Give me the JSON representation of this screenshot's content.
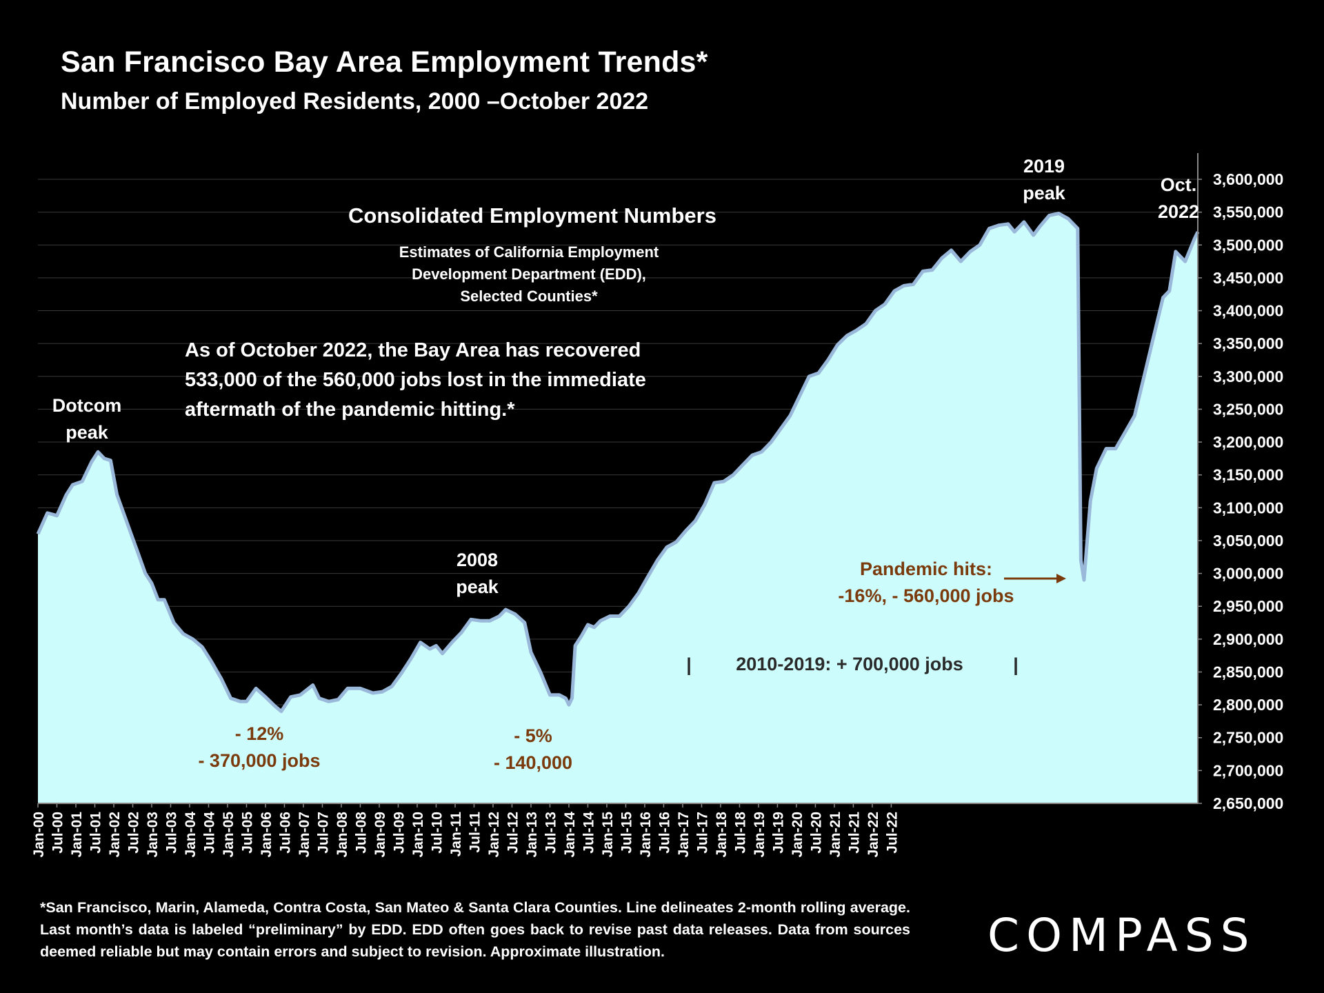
{
  "title": "San Francisco Bay Area Employment Trends*",
  "subtitle": "Number of Employed Residents, 2000 –October 2022",
  "chart_data": {
    "type": "area",
    "title": "San Francisco Bay Area Employment Trends*",
    "subtitle": "Number of Employed Residents, 2000 –October 2022",
    "ylim": [
      2650000,
      3600000
    ],
    "y_ticks": [
      2650000,
      2700000,
      2750000,
      2800000,
      2850000,
      2900000,
      2950000,
      3000000,
      3050000,
      3100000,
      3150000,
      3200000,
      3250000,
      3300000,
      3350000,
      3400000,
      3450000,
      3500000,
      3550000,
      3600000
    ],
    "y_tick_labels": [
      "2,650,000",
      "2,700,000",
      "2,750,000",
      "2,800,000",
      "2,850,000",
      "2,900,000",
      "2,950,000",
      "3,000,000",
      "3,050,000",
      "3,100,000",
      "3,150,000",
      "3,200,000",
      "3,250,000",
      "3,300,000",
      "3,350,000",
      "3,400,000",
      "3,450,000",
      "3,500,000",
      "3,550,000",
      "3,600,000"
    ],
    "x_tick_labels": [
      "Jan-00",
      "Jul-00",
      "Jan-01",
      "Jul-01",
      "Jan-02",
      "Jul-02",
      "Jan-03",
      "Jul-03",
      "Jan-04",
      "Jul-04",
      "Jan-05",
      "Jul-05",
      "Jan-06",
      "Jul-06",
      "Jan-07",
      "Jul-07",
      "Jan-08",
      "Jul-08",
      "Jan-09",
      "Jul-09",
      "Jan-10",
      "Jul-10",
      "Jan-11",
      "Jul-11",
      "Jan-12",
      "Jul-12",
      "Jan-13",
      "Jul-13",
      "Jan-14",
      "Jul-14",
      "Jan-15",
      "Jul-15",
      "Jan-16",
      "Jul-16",
      "Jan-17",
      "Jul-17",
      "Jan-18",
      "Jul-18",
      "Jan-19",
      "Jul-19",
      "Jan-20",
      "Jul-20",
      "Jan-21",
      "Jul-21",
      "Jan-22",
      "Jul-22"
    ],
    "x_range_months": [
      0,
      274
    ],
    "series": [
      {
        "name": "Employed Residents (2-month rolling average)",
        "points": [
          [
            0,
            3060000
          ],
          [
            3,
            3092000
          ],
          [
            6,
            3088000
          ],
          [
            9,
            3120000
          ],
          [
            11,
            3135000
          ],
          [
            14,
            3140000
          ],
          [
            17,
            3170000
          ],
          [
            19,
            3185000
          ],
          [
            21,
            3175000
          ],
          [
            23,
            3172000
          ],
          [
            25,
            3120000
          ],
          [
            28,
            3080000
          ],
          [
            31,
            3040000
          ],
          [
            34,
            3000000
          ],
          [
            36,
            2985000
          ],
          [
            38,
            2960000
          ],
          [
            40,
            2960000
          ],
          [
            43,
            2925000
          ],
          [
            46,
            2908000
          ],
          [
            49,
            2900000
          ],
          [
            52,
            2888000
          ],
          [
            55,
            2865000
          ],
          [
            58,
            2840000
          ],
          [
            61,
            2810000
          ],
          [
            64,
            2805000
          ],
          [
            66,
            2805000
          ],
          [
            69,
            2825000
          ],
          [
            72,
            2812000
          ],
          [
            75,
            2798000
          ],
          [
            77,
            2790000
          ],
          [
            80,
            2812000
          ],
          [
            83,
            2815000
          ],
          [
            87,
            2830000
          ],
          [
            89,
            2810000
          ],
          [
            92,
            2805000
          ],
          [
            95,
            2808000
          ],
          [
            98,
            2825000
          ],
          [
            102,
            2825000
          ],
          [
            106,
            2818000
          ],
          [
            109,
            2820000
          ],
          [
            112,
            2828000
          ],
          [
            115,
            2848000
          ],
          [
            118,
            2870000
          ],
          [
            121,
            2895000
          ],
          [
            124,
            2885000
          ],
          [
            126,
            2890000
          ],
          [
            128,
            2878000
          ],
          [
            131,
            2895000
          ],
          [
            134,
            2910000
          ],
          [
            137,
            2930000
          ],
          [
            140,
            2928000
          ],
          [
            143,
            2928000
          ],
          [
            146,
            2935000
          ],
          [
            148,
            2945000
          ],
          [
            151,
            2938000
          ],
          [
            154,
            2925000
          ],
          [
            156,
            2880000
          ],
          [
            159,
            2850000
          ],
          [
            162,
            2815000
          ],
          [
            165,
            2815000
          ],
          [
            167,
            2810000
          ],
          [
            168,
            2800000
          ],
          [
            169,
            2810000
          ],
          [
            170,
            2890000
          ],
          [
            172,
            2905000
          ],
          [
            174,
            2922000
          ],
          [
            176,
            2918000
          ],
          [
            178,
            2928000
          ],
          [
            181,
            2935000
          ],
          [
            184,
            2935000
          ],
          [
            187,
            2950000
          ],
          [
            190,
            2970000
          ],
          [
            193,
            2995000
          ],
          [
            196,
            3020000
          ],
          [
            199,
            3040000
          ],
          [
            202,
            3048000
          ],
          [
            205,
            3065000
          ],
          [
            208,
            3080000
          ],
          [
            211,
            3105000
          ],
          [
            214,
            3138000
          ],
          [
            217,
            3140000
          ],
          [
            220,
            3150000
          ],
          [
            223,
            3165000
          ],
          [
            226,
            3180000
          ],
          [
            229,
            3185000
          ],
          [
            232,
            3200000
          ],
          [
            235,
            3220000
          ],
          [
            238,
            3240000
          ],
          [
            241,
            3270000
          ],
          [
            244,
            3300000
          ],
          [
            247,
            3305000
          ],
          [
            250,
            3325000
          ],
          [
            253,
            3348000
          ],
          [
            256,
            3362000
          ],
          [
            259,
            3370000
          ],
          [
            262,
            3380000
          ],
          [
            265,
            3400000
          ],
          [
            268,
            3410000
          ],
          [
            271,
            3430000
          ],
          [
            274,
            3438000
          ],
          [
            277,
            3440000
          ],
          [
            280,
            3460000
          ],
          [
            283,
            3462000
          ],
          [
            286,
            3480000
          ],
          [
            289,
            3492000
          ],
          [
            292,
            3475000
          ],
          [
            295,
            3490000
          ],
          [
            298,
            3500000
          ],
          [
            301,
            3525000
          ],
          [
            304,
            3530000
          ],
          [
            307,
            3532000
          ],
          [
            309,
            3520000
          ],
          [
            312,
            3535000
          ],
          [
            315,
            3515000
          ],
          [
            317,
            3528000
          ],
          [
            320,
            3545000
          ],
          [
            323,
            3548000
          ],
          [
            326,
            3540000
          ],
          [
            329,
            3525000
          ],
          [
            330,
            3020000
          ],
          [
            331,
            2990000
          ],
          [
            333,
            3110000
          ],
          [
            335,
            3160000
          ],
          [
            338,
            3190000
          ],
          [
            341,
            3190000
          ],
          [
            344,
            3215000
          ],
          [
            347,
            3240000
          ],
          [
            350,
            3300000
          ],
          [
            353,
            3360000
          ],
          [
            356,
            3420000
          ],
          [
            358,
            3430000
          ],
          [
            360,
            3490000
          ],
          [
            363,
            3475000
          ],
          [
            366,
            3510000
          ],
          [
            367,
            3520000
          ]
        ]
      }
    ],
    "annotations": {
      "dotcom": "Dotcom\npeak",
      "peak2008": "2008\npeak",
      "peak2019": "2019\npeak",
      "oct2022": "Oct.\n2022",
      "drop1": "- 12%\n- 370,000 jobs",
      "drop2": "- 5%\n- 140,000",
      "pandemic": "Pandemic hits:\n-16%, - 560,000 jobs",
      "range_text": "2010-2019: + 700,000 jobs",
      "range_bar_left": "|",
      "range_bar_right": "|",
      "box_title": "Consolidated Employment Numbers",
      "box_sub": "Estimates of California Employment\nDevelopment Department (EDD),\nSelected Counties*",
      "recovery": "As of October 2022, the Bay Area has recovered\n533,000 of the 560,000 jobs lost in the immediate\naftermath of the pandemic hitting.*"
    },
    "colors": {
      "fill": "#ccfcfc",
      "line": "#9ab8da",
      "annotation_brown": "#7b3a0c",
      "grid": "#3a3a3a"
    }
  },
  "footnote": "*San Francisco, Marin, Alameda, Contra Costa, San Mateo & Santa Clara Counties. Line delineates 2-month rolling average. Last month’s data is labeled “preliminary” by EDD. EDD often goes back to revise past data releases. Data from sources deemed reliable but may contain errors and subject to revision. Approximate illustration.",
  "logo": "COMPASS"
}
